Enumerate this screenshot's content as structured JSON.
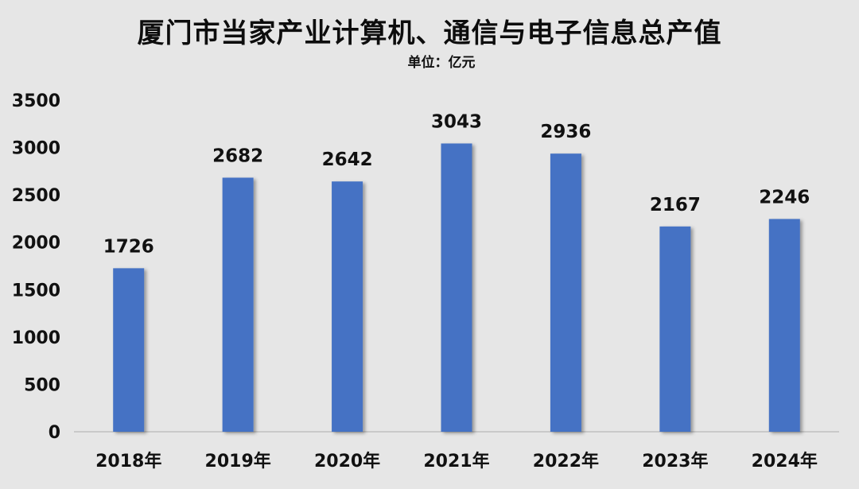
{
  "chart_data": {
    "type": "bar",
    "title": "厦门市当家产业计算机、通信与电子信息总产值",
    "subtitle": "单位：亿元",
    "categories": [
      "2018年",
      "2019年",
      "2020年",
      "2021年",
      "2022年",
      "2023年",
      "2024年"
    ],
    "values": [
      1726,
      2682,
      2642,
      3043,
      2936,
      2167,
      2246
    ],
    "yticks": [
      "0",
      "500",
      "1000",
      "1500",
      "2000",
      "2500",
      "3000",
      "3500"
    ],
    "ylim": [
      0,
      3500
    ],
    "grid": false,
    "legend": "none",
    "bar_color": "#4472c4"
  }
}
